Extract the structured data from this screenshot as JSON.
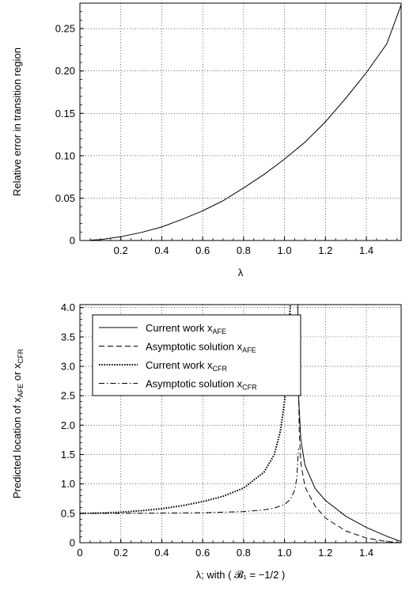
{
  "chart_data": [
    {
      "type": "line",
      "xlabel": "λ",
      "ylabel": "Relative error in transition region",
      "xlim": [
        0,
        1.57
      ],
      "ylim": [
        0,
        0.28
      ],
      "xticks": [
        "0.2",
        "0.4",
        "0.6",
        "0.8",
        "1.0",
        "1.2",
        "1.4"
      ],
      "yticks": [
        "0",
        "0.05",
        "0.10",
        "0.15",
        "0.20",
        "0.25"
      ],
      "grid": true,
      "series": [
        {
          "x": [
            0.05,
            0.1,
            0.2,
            0.3,
            0.4,
            0.5,
            0.6,
            0.7,
            0.8,
            0.9,
            1.0,
            1.1,
            1.2,
            1.3,
            1.4,
            1.5,
            1.57
          ],
          "y": [
            0.0005,
            0.001,
            0.0045,
            0.0095,
            0.016,
            0.025,
            0.035,
            0.047,
            0.062,
            0.078,
            0.096,
            0.116,
            0.14,
            0.168,
            0.198,
            0.232,
            0.278
          ]
        }
      ]
    },
    {
      "type": "line",
      "xlabel": "λ; with ( 𝓑₁ = −1/2 )",
      "ylabel_main": "Predicted location of x",
      "ylabel_sub1": "AFE",
      "ylabel_mid": " or x",
      "ylabel_sub2": "CFR",
      "xlim": [
        0,
        1.57
      ],
      "ylim": [
        0,
        4.05
      ],
      "xticks": [
        "0",
        "0.2",
        "0.4",
        "0.6",
        "0.8",
        "1.0",
        "1.2",
        "1.4"
      ],
      "yticks": [
        "0",
        "0.5",
        "1.0",
        "1.5",
        "2.0",
        "2.5",
        "3.0",
        "3.5",
        "4.0"
      ],
      "grid": true,
      "legend_position": "top-left",
      "series": [
        {
          "label_main": "Current work x",
          "label_sub": "AFE",
          "style": "solid",
          "x": [
            1.065,
            1.066,
            1.07,
            1.08,
            1.1,
            1.15,
            1.2,
            1.3,
            1.4,
            1.5,
            1.57
          ],
          "y": [
            4.05,
            3.2,
            2.4,
            1.75,
            1.32,
            0.92,
            0.72,
            0.45,
            0.26,
            0.11,
            0.02
          ]
        },
        {
          "label_main": "Asymptotic solution x",
          "label_sub": "AFE",
          "style": "dashed",
          "x": [
            1.068,
            1.069,
            1.072,
            1.08,
            1.1,
            1.15,
            1.2,
            1.3,
            1.4,
            1.5,
            1.57
          ],
          "y": [
            3.6,
            2.6,
            1.9,
            1.35,
            0.95,
            0.62,
            0.42,
            0.2,
            0.08,
            0.02,
            0.0
          ]
        },
        {
          "label_main": "Current work x",
          "label_sub": "CFR",
          "style": "dotted",
          "x": [
            0.0,
            0.1,
            0.2,
            0.3,
            0.4,
            0.5,
            0.6,
            0.7,
            0.8,
            0.9,
            0.95,
            0.98,
            1.0,
            1.01,
            1.02,
            1.025,
            1.028
          ],
          "y": [
            0.5,
            0.505,
            0.52,
            0.545,
            0.58,
            0.63,
            0.7,
            0.79,
            0.93,
            1.2,
            1.5,
            1.9,
            2.4,
            2.8,
            3.4,
            3.8,
            4.05
          ]
        },
        {
          "label_main": "Asymptotic solution x",
          "label_sub": "CFR",
          "style": "dashdot",
          "x": [
            0.0,
            0.2,
            0.4,
            0.6,
            0.8,
            0.9,
            0.95,
            1.0,
            1.03,
            1.05,
            1.06,
            1.065,
            1.068
          ],
          "y": [
            0.5,
            0.5,
            0.505,
            0.51,
            0.53,
            0.56,
            0.59,
            0.65,
            0.74,
            0.9,
            1.1,
            1.4,
            1.6
          ]
        }
      ]
    }
  ]
}
